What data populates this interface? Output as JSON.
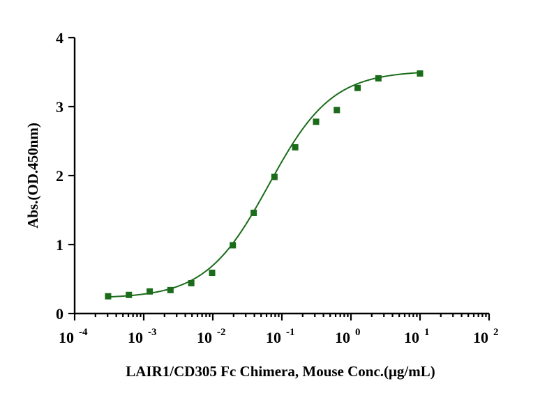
{
  "chart_data": {
    "type": "scatter",
    "title": "",
    "xlabel": "LAIR1/CD305 Fc Chimera, Mouse Conc.(μg/mL)",
    "ylabel": "Abs.(OD.450nm)",
    "x_scale": "log",
    "xlim": [
      0.0001,
      100
    ],
    "ylim": [
      0,
      4
    ],
    "x_ticks": [
      {
        "base": "10",
        "exp": "-4",
        "value": 0.0001
      },
      {
        "base": "10",
        "exp": "-3",
        "value": 0.001
      },
      {
        "base": "10",
        "exp": "-2",
        "value": 0.01
      },
      {
        "base": "10",
        "exp": "-1",
        "value": 0.1
      },
      {
        "base": "10",
        "exp": "0",
        "value": 1
      },
      {
        "base": "10",
        "exp": "1",
        "value": 10
      },
      {
        "base": "10",
        "exp": "2",
        "value": 100
      }
    ],
    "y_ticks": [
      "0",
      "1",
      "2",
      "3",
      "4"
    ],
    "grid": false,
    "legend": "none",
    "series": [
      {
        "marker": "square",
        "color": "#1a6b1a",
        "x": [
          0.000305,
          0.00061,
          0.00122,
          0.00244,
          0.00488,
          0.00977,
          0.0195,
          0.0391,
          0.0781,
          0.156,
          0.3125,
          0.625,
          1.25,
          2.5,
          10
        ],
        "y": [
          0.25,
          0.27,
          0.32,
          0.34,
          0.44,
          0.59,
          0.99,
          1.46,
          1.98,
          2.41,
          2.78,
          2.95,
          3.27,
          3.41,
          3.48
        ]
      }
    ],
    "fit_curve": {
      "type": "4PL",
      "color": "#1a6b1a",
      "bottom": 0.22,
      "top": 3.52,
      "ec50": 0.065,
      "hill": 0.95,
      "x_range": [
        0.000305,
        10
      ]
    }
  }
}
